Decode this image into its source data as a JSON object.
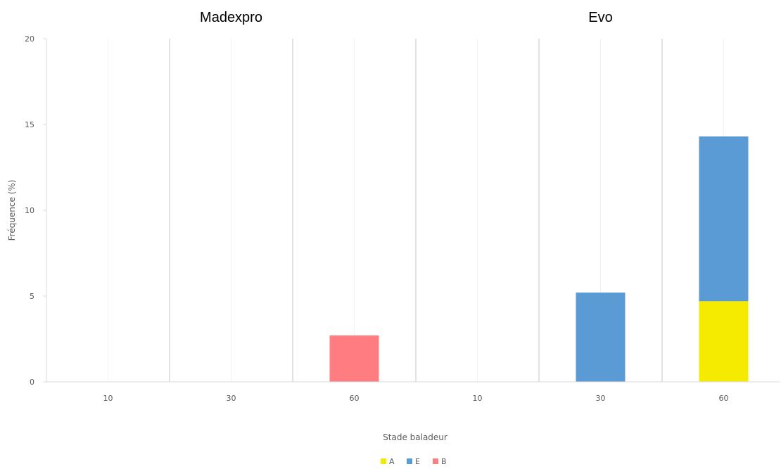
{
  "chart_data": {
    "type": "bar",
    "stacked": true,
    "panels": [
      "Madexpro",
      "Evo"
    ],
    "categories": [
      "10",
      "30",
      "60"
    ],
    "xlabel": "Stade baladeur",
    "ylabel": "Fréquence (%)",
    "ylim": [
      0,
      20
    ],
    "yticks": [
      0,
      5,
      10,
      15,
      20
    ],
    "grid": "vertical separators",
    "legend_position": "bottom",
    "series": [
      {
        "name": "A",
        "color": "#f5eb00",
        "values": {
          "Madexpro": [
            0,
            0,
            0
          ],
          "Evo": [
            0,
            0,
            4.7
          ]
        }
      },
      {
        "name": "E",
        "color": "#5b9bd5",
        "values": {
          "Madexpro": [
            0,
            0,
            0
          ],
          "Evo": [
            0,
            5.2,
            9.6
          ]
        }
      },
      {
        "name": "B",
        "color": "#ff7c80",
        "values": {
          "Madexpro": [
            0,
            0,
            2.7
          ],
          "Evo": [
            0,
            0,
            0
          ]
        }
      }
    ]
  }
}
